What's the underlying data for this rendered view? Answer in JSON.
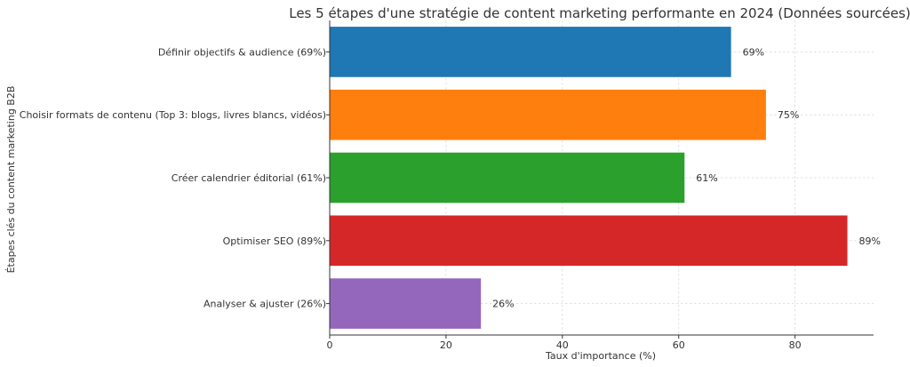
{
  "chart_data": {
    "type": "bar",
    "orientation": "horizontal",
    "title": "Les 5 étapes d'une stratégie de content marketing performante en 2024 (Données sourcées)",
    "xlabel": "Taux d'importance (%)",
    "ylabel": "Étapes clés du content marketing B2B",
    "categories": [
      "Définir objectifs & audience (69%)",
      "Choisir formats de contenu (Top 3: blogs, livres blancs, vidéos)",
      "Créer calendrier éditorial (61%)",
      "Optimiser SEO (89%)",
      "Analyser & ajuster (26%)"
    ],
    "values": [
      69,
      75,
      61,
      89,
      26
    ],
    "data_labels": [
      "69%",
      "75%",
      "61%",
      "89%",
      "26%"
    ],
    "colors": [
      "#1f77b4",
      "#ff7f0e",
      "#2ca02c",
      "#d62728",
      "#9467bd"
    ],
    "xlim": [
      0,
      93.5
    ],
    "xticks": [
      0,
      20,
      40,
      60,
      80
    ],
    "grid": true,
    "legend": "none"
  }
}
